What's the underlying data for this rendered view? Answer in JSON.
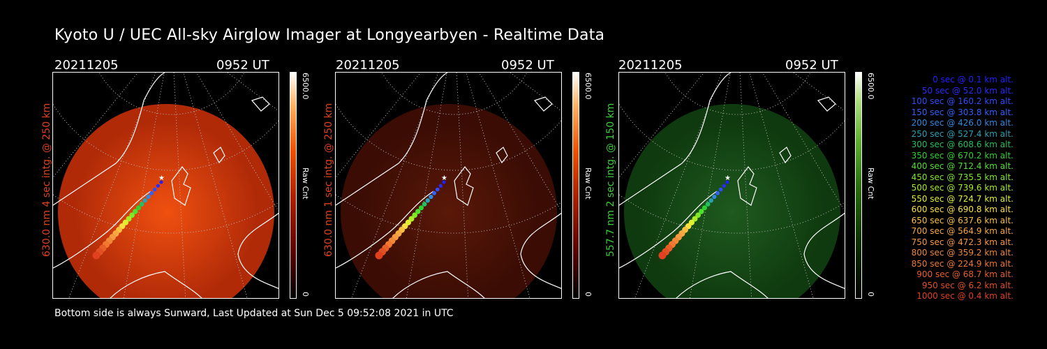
{
  "title": "Kyoto U / UEC All-sky Airglow Imager at Longyearbyen - Realtime Data",
  "panels": [
    {
      "date": "20211205",
      "time": "0952 UT",
      "ylabel": "630.0 nm 4 sec intg. @ 250 km",
      "label_color": "#e0401c",
      "cbar_max": "6500.0",
      "cbar_unit": "Raw Cnt",
      "cbar_min": "0",
      "glow": "red"
    },
    {
      "date": "20211205",
      "time": "0952 UT",
      "ylabel": "630.0 nm 1 sec intg. @ 250 km",
      "label_color": "#e0401c",
      "cbar_max": "6500.0",
      "cbar_unit": "Raw Cnt",
      "cbar_min": "0",
      "glow": "dimred"
    },
    {
      "date": "20211205",
      "time": "0952 UT",
      "ylabel": "557.7 nm 2 sec intg. @ 150 km",
      "label_color": "#3ccc3c",
      "cbar_max": "6500.0",
      "cbar_unit": "Raw Cnt",
      "cbar_min": "0",
      "glow": "green"
    }
  ],
  "legend": [
    {
      "text": "0 sec @   0.1 km alt.",
      "color": "#2020ff"
    },
    {
      "text": "50 sec @  52.0 km alt.",
      "color": "#2a2aff"
    },
    {
      "text": "100 sec @ 160.2 km alt.",
      "color": "#2f4dff"
    },
    {
      "text": "150 sec @ 303.8 km alt.",
      "color": "#3060ff"
    },
    {
      "text": "200 sec @ 426.0 km alt.",
      "color": "#3088e0"
    },
    {
      "text": "250 sec @ 527.4 km alt.",
      "color": "#2aa0b0"
    },
    {
      "text": "300 sec @ 608.6 km alt.",
      "color": "#22c060"
    },
    {
      "text": "350 sec @ 670.2 km alt.",
      "color": "#30d030"
    },
    {
      "text": "400 sec @ 712.4 km alt.",
      "color": "#50e030"
    },
    {
      "text": "450 sec @ 735.5 km alt.",
      "color": "#80e828"
    },
    {
      "text": "500 sec @ 739.6 km alt.",
      "color": "#a8ec28"
    },
    {
      "text": "550 sec @ 724.7 km alt.",
      "color": "#e0f030"
    },
    {
      "text": "600 sec @ 690.8 km alt.",
      "color": "#f8e040"
    },
    {
      "text": "650 sec @ 637.6 km alt.",
      "color": "#f8c040"
    },
    {
      "text": "700 sec @ 564.9 km alt.",
      "color": "#f8a840"
    },
    {
      "text": "750 sec @ 472.3 km alt.",
      "color": "#f89840"
    },
    {
      "text": "800 sec @ 359.2 km alt.",
      "color": "#f08838"
    },
    {
      "text": "850 sec @ 224.9 km alt.",
      "color": "#f07830"
    },
    {
      "text": "900 sec @  68.7 km alt.",
      "color": "#e86028"
    },
    {
      "text": "950 sec @   6.2 km alt.",
      "color": "#e05024"
    },
    {
      "text": "1000 sec @   0.4 km alt.",
      "color": "#e04020"
    }
  ],
  "footer": "Bottom side is always Sunward, Last Updated at Sun Dec  5 09:52:08 2021 in UTC"
}
